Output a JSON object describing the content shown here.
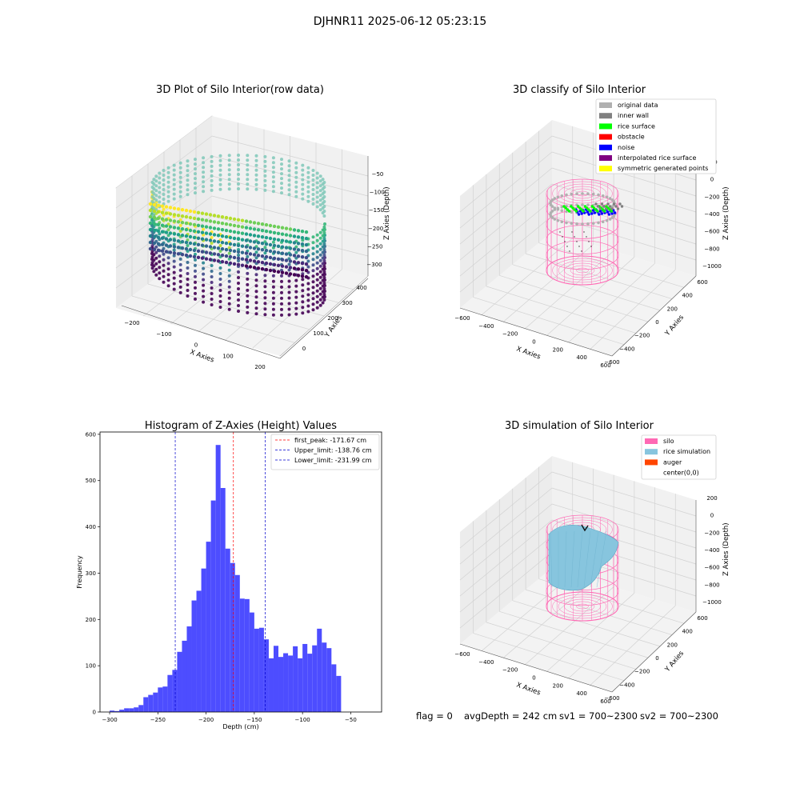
{
  "suptitle": "DJHNR11 2025-06-12 05:23:15",
  "colors": {
    "hist_bar": "#4d4dff",
    "peak_line": "#ff0000",
    "limit_line": "#0000cc",
    "silo": "#ff69b4",
    "rice_sim": "#87c5de",
    "auger": "#ff4500",
    "inner_wall": "#808080",
    "original": "#b0b0b0",
    "rice_surface": "#00ff00",
    "obstacle": "#ff0000",
    "noise": "#0000ff",
    "interp": "#800080",
    "symm": "#ffff00"
  },
  "panel_raw": {
    "title": "3D Plot of Silo Interior(row data)",
    "xlabel": "X Axies",
    "ylabel": "Y Axies",
    "zlabel": "Z Axies (Depth)",
    "xticks": [
      "−200",
      "−100",
      "0",
      "100",
      "200"
    ],
    "yticks": [
      "0",
      "100",
      "200",
      "300",
      "400"
    ],
    "zticks": [
      "−50",
      "−100",
      "−150",
      "−200",
      "−250",
      "−300"
    ]
  },
  "panel_classify": {
    "title": "3D classify of Silo Interior",
    "xlabel": "X Axies",
    "ylabel": "Y Axies",
    "zlabel": "Z Axies (Depth)",
    "xticks": [
      "−600",
      "−400",
      "−200",
      "0",
      "200",
      "400",
      "600"
    ],
    "yticks": [
      "−600",
      "−400",
      "−200",
      "0",
      "200",
      "400",
      "600"
    ],
    "zticks": [
      "200",
      "0",
      "−200",
      "−400",
      "−600",
      "−800",
      "−1000"
    ],
    "legend": [
      "original data",
      "inner wall",
      "rice surface",
      "obstacle",
      "noise",
      "interpolated rice surface",
      "symmetric generated points"
    ],
    "legend_colors": [
      "#b0b0b0",
      "#808080",
      "#00ff00",
      "#ff0000",
      "#0000ff",
      "#800080",
      "#ffff00"
    ]
  },
  "panel_sim": {
    "title": "3D simulation of Silo Interior",
    "xlabel": "X Axies",
    "ylabel": "Y Axies",
    "zlabel": "Z Axies (Depth)",
    "xticks": [
      "−600",
      "−400",
      "−200",
      "0",
      "200",
      "400",
      "600"
    ],
    "yticks": [
      "−600",
      "−400",
      "−200",
      "0",
      "200",
      "400",
      "600"
    ],
    "zticks": [
      "200",
      "0",
      "−200",
      "−400",
      "−600",
      "−800",
      "−1000"
    ],
    "legend": [
      "silo",
      "rice simulation",
      "auger",
      "center(0,0)"
    ],
    "legend_colors": [
      "#ff69b4",
      "#87c5de",
      "#ff4500",
      ""
    ]
  },
  "footer": {
    "flag": "flag = 0",
    "avg": "avgDepth = 242 cm",
    "sv1": "sv1 = 700~2300",
    "sv2": "sv2 = 700~2300"
  },
  "chart_data": {
    "type": "bar",
    "title": "Histogram of Z-Axies (Height) Values",
    "xlabel": "Depth (cm)",
    "ylabel": "Frequency",
    "xlim": [
      -310,
      -18
    ],
    "ylim": [
      0,
      605
    ],
    "xticks": [
      -300,
      -250,
      -200,
      -150,
      -100,
      -50
    ],
    "xtick_labels": [
      "−300",
      "−250",
      "−200",
      "−150",
      "−100",
      "−50"
    ],
    "yticks": [
      0,
      100,
      200,
      300,
      400,
      500,
      600
    ],
    "bin_start": -300,
    "bin_width": 5,
    "values": [
      3,
      2,
      5,
      8,
      8,
      10,
      15,
      32,
      37,
      42,
      53,
      55,
      80,
      91,
      130,
      154,
      185,
      241,
      262,
      310,
      368,
      457,
      577,
      484,
      353,
      322,
      296,
      245,
      244,
      215,
      180,
      182,
      157,
      116,
      143,
      119,
      127,
      122,
      142,
      116,
      147,
      126,
      144,
      180,
      150,
      138,
      103,
      78
    ],
    "lines": [
      {
        "label": "first_peak: -171.67 cm",
        "x": -171.67,
        "color": "#ff0000"
      },
      {
        "label": "Upper_limit: -138.76 cm",
        "x": -138.76,
        "color": "#0000cc"
      },
      {
        "label": "Lower_limit: -231.99 cm",
        "x": -231.99,
        "color": "#0000cc"
      }
    ],
    "legend_position": "upper right",
    "grid": false
  }
}
